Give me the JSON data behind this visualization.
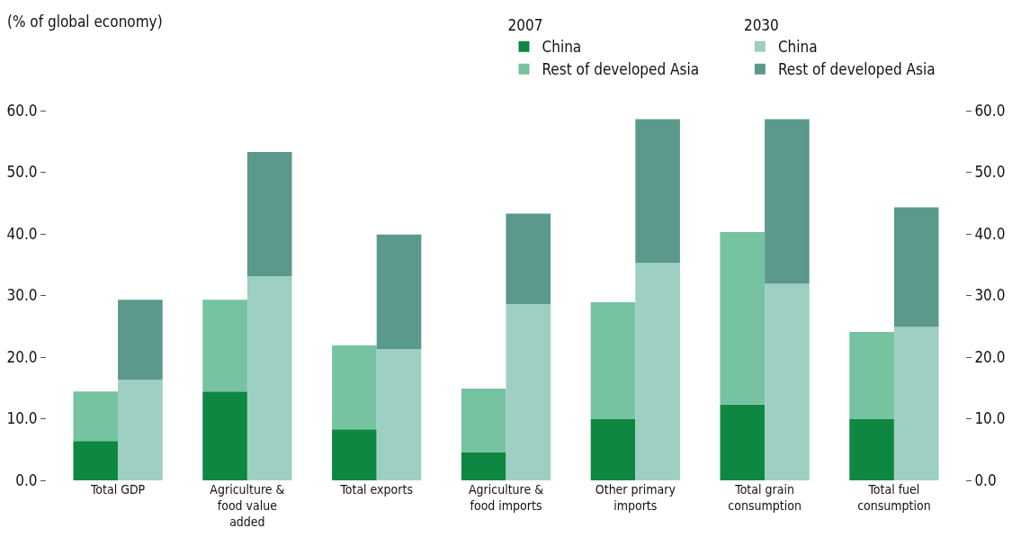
{
  "chart_data": [
    {
      "type": "bar",
      "stacked": true,
      "ylabel": "(% of global economy)",
      "legend_title": "2007",
      "categories": [
        "Total GDP",
        "Agriculture & food value added",
        "Total exports",
        "Agriculture & food imports",
        "Other primary imports",
        "Total grain consumption",
        "Total fuel consumption"
      ],
      "series": [
        {
          "name": "China",
          "color": "#0e8742",
          "values": [
            6.4,
            14.4,
            8.3,
            4.6,
            10.0,
            12.3,
            10.0
          ]
        },
        {
          "name": "Rest of developed Asia",
          "color": "#75c3a0",
          "values": [
            8.0,
            14.9,
            13.6,
            10.3,
            18.9,
            28.0,
            14.1
          ]
        }
      ],
      "ylim": [
        0,
        60
      ],
      "yticks": [
        {
          "value": 0,
          "label": "0.0"
        },
        {
          "value": 10,
          "label": "10.0"
        },
        {
          "value": 20,
          "label": "20.0"
        },
        {
          "value": 30,
          "label": "30.0"
        },
        {
          "value": 40,
          "label": "40.0"
        },
        {
          "value": 50,
          "label": "50.0"
        },
        {
          "value": 60,
          "label": "60.0"
        }
      ],
      "grid": false,
      "legend": "top"
    },
    {
      "type": "bar",
      "stacked": true,
      "legend_title": "2030",
      "categories": [
        null,
        null,
        null,
        null,
        null,
        null,
        null
      ],
      "series": [
        {
          "name": "China",
          "color": "#9dcfc2",
          "values": [
            16.3,
            33.1,
            21.3,
            28.6,
            35.3,
            31.9,
            24.9
          ]
        },
        {
          "name": "Rest of developed Asia",
          "color": "#5a998b",
          "values": [
            13.0,
            20.2,
            18.6,
            14.7,
            23.3,
            26.7,
            19.4
          ]
        }
      ],
      "ylim": [
        0,
        60
      ],
      "yticks": [
        {
          "value": 0,
          "label": "0.0"
        },
        {
          "value": 10,
          "label": "10.0"
        },
        {
          "value": 20,
          "label": "20.0"
        },
        {
          "value": 30,
          "label": "30.0"
        },
        {
          "value": 40,
          "label": "40.0"
        },
        {
          "value": 50,
          "label": "50.0"
        },
        {
          "value": 60,
          "label": "60.0"
        }
      ],
      "tick_labels": "y",
      "grid": false,
      "legend": "top right"
    }
  ]
}
